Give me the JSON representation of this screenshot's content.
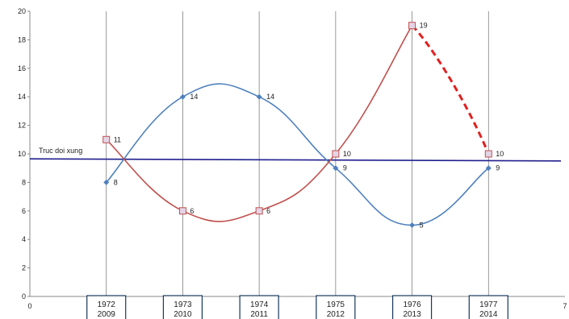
{
  "chart_data": {
    "type": "line",
    "ylim": [
      0,
      20
    ],
    "xlim": [
      0,
      7
    ],
    "y_ticks": [
      "0",
      "2",
      "4",
      "6",
      "8",
      "10",
      "12",
      "14",
      "16",
      "18",
      "20"
    ],
    "x_axis_tick_labels": [
      "0",
      "7"
    ],
    "x": [
      1,
      2,
      3,
      4,
      5,
      6
    ],
    "categories": [
      {
        "top": "1972",
        "bottom": "2009"
      },
      {
        "top": "1973",
        "bottom": "2010"
      },
      {
        "top": "1974",
        "bottom": "2011"
      },
      {
        "top": "1975",
        "bottom": "2012"
      },
      {
        "top": "1976",
        "bottom": "2013"
      },
      {
        "top": "1977",
        "bottom": "2014"
      }
    ],
    "series": [
      {
        "values": [
          8,
          14,
          14,
          9,
          5,
          9
        ],
        "labels": [
          "8",
          "14",
          "14",
          "9",
          "5",
          "9"
        ],
        "color": "#4f81bd",
        "marker": "diamond"
      },
      {
        "values": [
          11,
          6,
          6,
          10,
          19,
          10
        ],
        "labels": [
          "11",
          "6",
          "6",
          "10",
          "19",
          "10"
        ],
        "color": "#c0504d",
        "marker": "square",
        "dashed_last_segment": true
      }
    ],
    "symmetry_line": {
      "label": "Truc doi xung",
      "y_start": 9.65,
      "y_end": 9.5,
      "color": "#1f1f8f"
    },
    "grid": {
      "vertical": true,
      "horizontal": false
    }
  }
}
